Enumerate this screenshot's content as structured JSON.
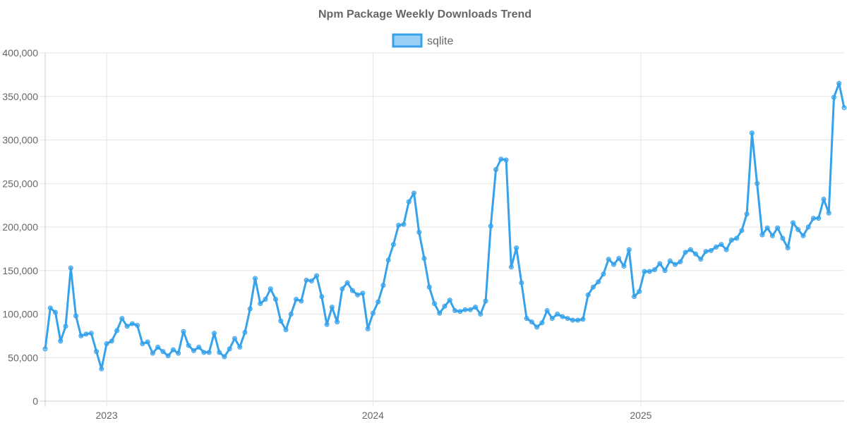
{
  "chart_data": {
    "type": "line",
    "title": "Npm Package Weekly Downloads Trend",
    "xlabel": "",
    "ylabel": "",
    "ylim": [
      0,
      400000
    ],
    "y_ticks": [
      "0",
      "50,000",
      "100,000",
      "150,000",
      "200,000",
      "250,000",
      "300,000",
      "350,000",
      "400,000"
    ],
    "y_tick_values": [
      0,
      50000,
      100000,
      150000,
      200000,
      250000,
      300000,
      350000,
      400000
    ],
    "x_ticks": [
      {
        "label": "2023",
        "at_week_index": 12
      },
      {
        "label": "2024",
        "at_week_index": 64
      },
      {
        "label": "2025",
        "at_week_index": 116.3
      }
    ],
    "grid": true,
    "legend_position": "top-center",
    "series": [
      {
        "name": "sqlite",
        "color": "#36a2eb",
        "fill": "#9ad0f5",
        "values": [
          60000,
          107000,
          102000,
          69000,
          86000,
          153000,
          98000,
          75000,
          77000,
          78000,
          57000,
          37000,
          66000,
          69000,
          81000,
          95000,
          86000,
          89000,
          87000,
          66000,
          68000,
          55000,
          62000,
          57000,
          52000,
          59000,
          55000,
          80000,
          64000,
          58000,
          62000,
          56000,
          56000,
          78000,
          56000,
          51000,
          60000,
          72000,
          62000,
          79000,
          106000,
          141000,
          112000,
          117000,
          129000,
          117000,
          92000,
          82000,
          100000,
          117000,
          115000,
          139000,
          138000,
          144000,
          120000,
          88000,
          108000,
          91000,
          129000,
          136000,
          127000,
          122000,
          124000,
          83000,
          101000,
          114000,
          133000,
          162000,
          180000,
          202000,
          203000,
          229000,
          239000,
          194000,
          164000,
          131000,
          112000,
          101000,
          109000,
          116000,
          104000,
          103000,
          105000,
          105000,
          108000,
          100000,
          115000,
          201000,
          266000,
          278000,
          277000,
          154000,
          176000,
          136000,
          95000,
          91000,
          85000,
          90000,
          104000,
          95000,
          100000,
          97000,
          95000,
          93000,
          93000,
          94000,
          122000,
          131000,
          137000,
          146000,
          163000,
          157000,
          164000,
          155000,
          174000,
          120000,
          126000,
          149000,
          149000,
          151000,
          158000,
          150000,
          161000,
          157000,
          160000,
          171000,
          174000,
          169000,
          163000,
          172000,
          173000,
          177000,
          180000,
          174000,
          185000,
          187000,
          196000,
          215000,
          308000,
          250000,
          191000,
          199000,
          190000,
          199000,
          187000,
          176000,
          205000,
          197000,
          190000,
          200000,
          210000,
          210000,
          232000,
          216000,
          349000,
          365000,
          337000
        ]
      }
    ]
  }
}
